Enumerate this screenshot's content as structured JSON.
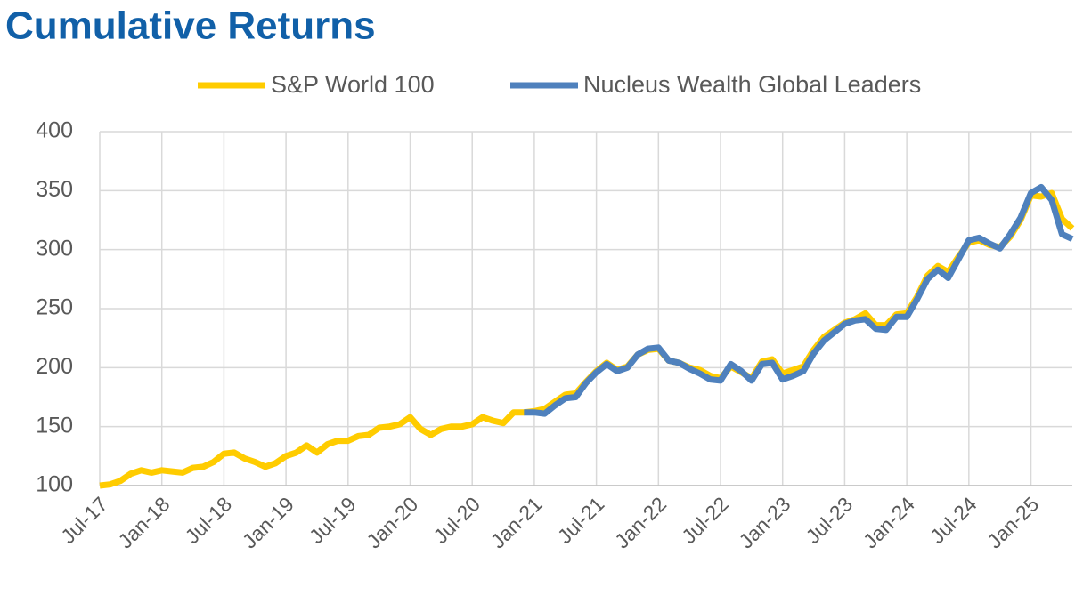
{
  "chart_data": {
    "type": "line",
    "title": "Cumulative Returns",
    "categories": [
      "Jul-17",
      null,
      null,
      null,
      null,
      null,
      "Jan-18",
      null,
      null,
      null,
      null,
      null,
      "Jul-18",
      null,
      null,
      null,
      null,
      null,
      "Jan-19",
      null,
      null,
      null,
      null,
      null,
      "Jul-19",
      null,
      null,
      null,
      null,
      null,
      "Jan-20",
      null,
      null,
      null,
      null,
      null,
      "Jul-20",
      null,
      null,
      null,
      null,
      null,
      "Jan-21",
      null,
      null,
      null,
      null,
      null,
      "Jul-21",
      null,
      null,
      null,
      null,
      null,
      "Jan-22",
      null,
      null,
      null,
      null,
      null,
      "Jul-22",
      null,
      null,
      null,
      null,
      null,
      "Jan-23",
      null,
      null,
      null,
      null,
      null,
      "Jul-23",
      null,
      null,
      null,
      null,
      null,
      "Jan-24",
      null,
      null,
      null,
      null,
      null,
      "Jul-24",
      null,
      null,
      null,
      null,
      null,
      "Jan-25",
      null,
      null,
      null,
      null
    ],
    "series": [
      {
        "name": "S&P World 100",
        "color": "#ffcc00",
        "values": [
          100,
          101,
          104,
          110,
          113,
          111,
          113,
          112,
          111,
          115,
          116,
          120,
          127,
          128,
          123,
          120,
          116,
          119,
          125,
          128,
          134,
          128,
          135,
          138,
          138,
          142,
          143,
          149,
          150,
          152,
          158,
          148,
          143,
          148,
          150,
          150,
          152,
          158,
          155,
          153,
          162,
          162,
          163,
          165,
          171,
          177,
          178,
          188,
          197,
          204,
          198,
          201,
          211,
          215,
          216,
          206,
          204,
          200,
          198,
          193,
          191,
          201,
          196,
          191,
          205,
          207,
          195,
          198,
          201,
          215,
          226,
          232,
          238,
          241,
          246,
          236,
          236,
          245,
          246,
          260,
          278,
          286,
          281,
          294,
          306,
          308,
          304,
          302,
          311,
          325,
          346,
          345,
          348,
          326,
          318
        ]
      },
      {
        "name": "Nucleus Wealth Global Leaders",
        "color": "#4f81bd",
        "values": [
          null,
          null,
          null,
          null,
          null,
          null,
          null,
          null,
          null,
          null,
          null,
          null,
          null,
          null,
          null,
          null,
          null,
          null,
          null,
          null,
          null,
          null,
          null,
          null,
          null,
          null,
          null,
          null,
          null,
          null,
          null,
          null,
          null,
          null,
          null,
          null,
          null,
          null,
          null,
          null,
          null,
          162,
          162,
          161,
          168,
          174,
          175,
          187,
          196,
          203,
          197,
          200,
          211,
          216,
          217,
          206,
          204,
          199,
          195,
          190,
          189,
          203,
          197,
          189,
          203,
          204,
          190,
          193,
          197,
          212,
          223,
          230,
          237,
          240,
          241,
          233,
          232,
          243,
          243,
          258,
          275,
          283,
          276,
          292,
          308,
          310,
          305,
          301,
          313,
          327,
          348,
          353,
          342,
          313,
          309
        ]
      }
    ],
    "ylim": [
      100,
      400
    ],
    "yticks": [
      100,
      150,
      200,
      250,
      300,
      350,
      400
    ],
    "grid": true,
    "legend": "top"
  }
}
